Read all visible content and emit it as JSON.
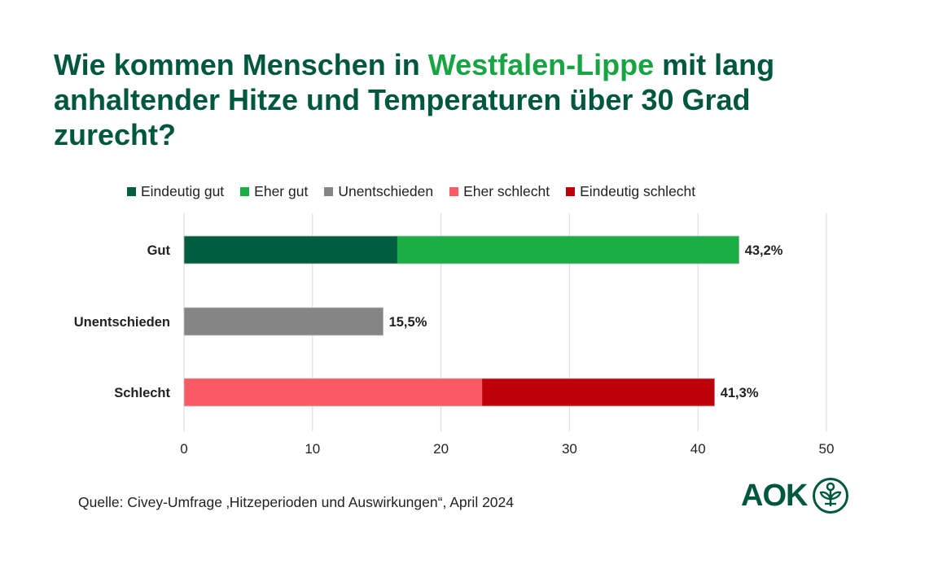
{
  "title": {
    "part1": "Wie kommen Menschen in ",
    "highlight": "Westfalen-Lippe",
    "part2": " mit lang anhaltender Hitze und Temperaturen über 30 Grad zurecht?"
  },
  "source": "Quelle: Civey-Umfrage ‚Hitzeperioden und Auswirkungen“, April 2024",
  "logo": {
    "text": "AOK",
    "icon": "plant-circle-icon"
  },
  "colors": {
    "title": "#00573f",
    "highlight": "#17a543",
    "eindeutig_gut": "#005e40",
    "eher_gut": "#1aac45",
    "unentschieden": "#858585",
    "eher_schlecht": "#f95a66",
    "eindeutig_schlecht": "#c00008"
  },
  "chart_data": {
    "type": "bar",
    "orientation": "horizontal",
    "stacked": true,
    "categories": [
      "Gut",
      "Unentschieden",
      "Schlecht"
    ],
    "series": [
      {
        "name": "Eindeutig gut",
        "color": "#005e40",
        "values": [
          16.6,
          0,
          0
        ]
      },
      {
        "name": "Eher gut",
        "color": "#1aac45",
        "values": [
          26.6,
          0,
          0
        ]
      },
      {
        "name": "Unentschieden",
        "color": "#858585",
        "values": [
          0,
          15.5,
          0
        ]
      },
      {
        "name": "Eher schlecht",
        "color": "#f95a66",
        "values": [
          0,
          0,
          23.2
        ]
      },
      {
        "name": "Eindeutig schlecht",
        "color": "#c00008",
        "values": [
          0,
          0,
          18.1
        ]
      }
    ],
    "totals": [
      43.2,
      15.5,
      41.3
    ],
    "total_labels": [
      "43,2%",
      "15,5%",
      "41,3%"
    ],
    "xlim": [
      0,
      50
    ],
    "xticks": [
      "0",
      "10",
      "20",
      "30",
      "40",
      "50"
    ],
    "grid": "vertical",
    "legend_position": "top"
  }
}
